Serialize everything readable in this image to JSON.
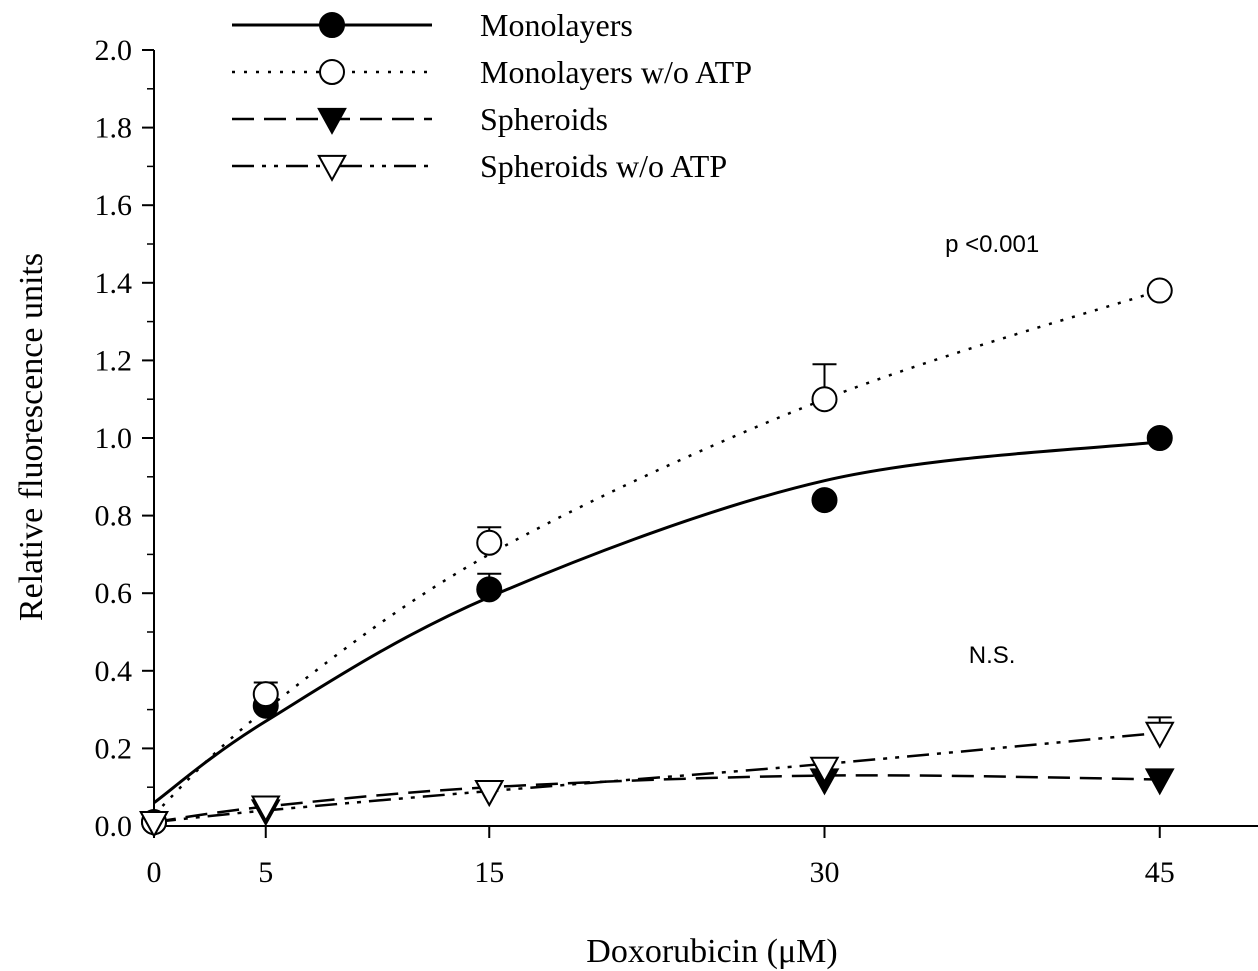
{
  "chart_data": {
    "type": "line",
    "title": "",
    "xlabel": "Doxorubicin (μM)",
    "ylabel": "Relative fluorescence units",
    "x": [
      0,
      5,
      15,
      30,
      45
    ],
    "xticks": [
      "0",
      "5",
      "15",
      "30",
      "45"
    ],
    "xlim": [
      0,
      49.5
    ],
    "ylim": [
      0,
      2.0
    ],
    "yticks": [
      "0.0",
      "0.2",
      "0.4",
      "0.6",
      "0.8",
      "1.0",
      "1.2",
      "1.4",
      "1.6",
      "1.8",
      "2.0"
    ],
    "grid": false,
    "legend_position": "top",
    "series": [
      {
        "name": "Monolayers",
        "marker": "filled-circle",
        "line": "solid",
        "values": [
          0.01,
          0.31,
          0.61,
          0.84,
          1.0
        ],
        "errors": [
          0.0,
          0.02,
          0.04,
          0.0,
          0.0
        ],
        "fit": [
          0.06,
          0.27,
          0.59,
          0.89,
          0.99
        ]
      },
      {
        "name": "Monolayers w/o ATP",
        "marker": "open-circle",
        "line": "dotted",
        "values": [
          0.01,
          0.34,
          0.73,
          1.1,
          1.38
        ],
        "errors": [
          0.0,
          0.03,
          0.04,
          0.09,
          0.0
        ],
        "fit": [
          0.03,
          0.3,
          0.7,
          1.1,
          1.38
        ]
      },
      {
        "name": "Spheroids",
        "marker": "filled-triangle-down",
        "line": "dashed",
        "values": [
          0.01,
          0.04,
          0.09,
          0.12,
          0.12
        ],
        "errors": [
          0.0,
          0.0,
          0.0,
          0.0,
          0.0
        ],
        "fit": [
          0.01,
          0.05,
          0.1,
          0.13,
          0.12
        ]
      },
      {
        "name": "Spheroids w/o ATP",
        "marker": "open-triangle-down",
        "line": "dash-dot-dot",
        "values": [
          0.01,
          0.05,
          0.09,
          0.15,
          0.24
        ],
        "errors": [
          0.0,
          0.0,
          0.0,
          0.0,
          0.04
        ],
        "fit": [
          0.01,
          0.04,
          0.09,
          0.16,
          0.24
        ]
      }
    ],
    "annotations": [
      {
        "text": "p <0.001",
        "x": 37.5,
        "y": 1.48
      },
      {
        "text": "N.S.",
        "x": 37.5,
        "y": 0.42
      }
    ]
  }
}
